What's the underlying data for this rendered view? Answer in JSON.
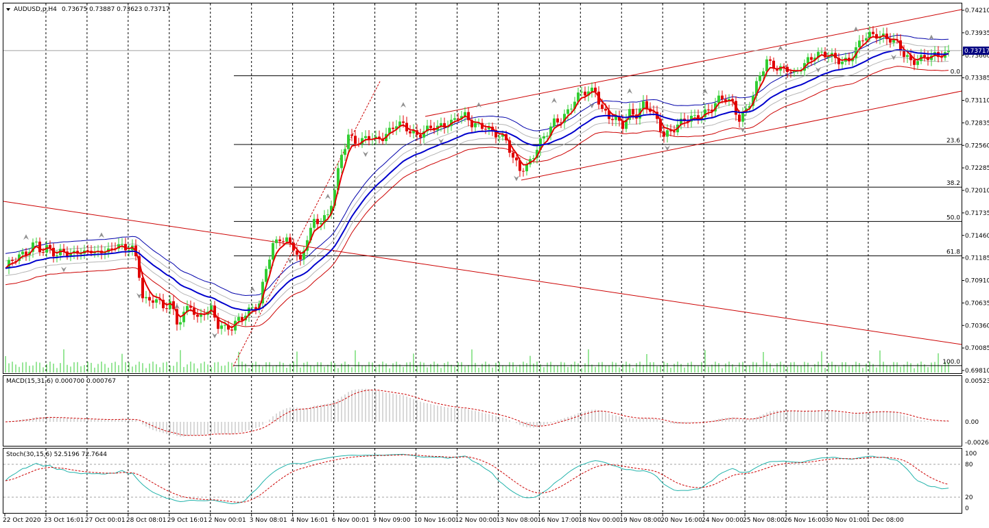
{
  "header": {
    "symbol": "AUDUSD,p,H4",
    "ohlc": "0.73675 0.73887 0.73623 0.73717"
  },
  "colors": {
    "bull_candle": "#32cd32",
    "bear_candle": "#e00000",
    "trendline": "#cc0000",
    "ma_fast": "#e00000",
    "ma_mid": "#0000cc",
    "envelope_outer": "#0000aa",
    "envelope_inner": "#b4b4b4",
    "envelope_low": "#cc0000",
    "fib_line": "#000000",
    "stoch_main": "#20b2aa",
    "stoch_signal": "#cc0000",
    "macd_signal": "#cc0000",
    "grid": "#000000",
    "price_badge": "#000080"
  },
  "chart_data": [
    {
      "type": "candlestick",
      "title": "AUDUSD,p,H4",
      "current_price": "0.73717",
      "ylim": [
        0.6981,
        0.7421
      ],
      "y_ticks": [
        "0.74210",
        "0.73935",
        "0.73660",
        "0.73385",
        "0.73110",
        "0.72835",
        "0.72560",
        "0.72285",
        "0.72010",
        "0.71735",
        "0.71460",
        "0.71185",
        "0.70910",
        "0.70635",
        "0.70360",
        "0.70085",
        "0.69810"
      ],
      "x_ticks": [
        "22 Oct 2020",
        "23 Oct 16:01",
        "27 Oct 00:01",
        "28 Oct 08:01",
        "29 Oct 16:01",
        "2 Nov 00:01",
        "3 Nov 08:01",
        "4 Nov 16:01",
        "6 Nov 00:01",
        "9 Nov 09:00",
        "10 Nov 16:00",
        "12 Nov 00:00",
        "13 Nov 08:00",
        "16 Nov 17:00",
        "18 Nov 00:00",
        "19 Nov 08:00",
        "20 Nov 16:00",
        "24 Nov 00:00",
        "25 Nov 08:00",
        "26 Nov 16:00",
        "30 Nov 01:00",
        "1 Dec 08:00"
      ],
      "fibonacci_levels": [
        {
          "label": "0.0",
          "price": 0.7341
        },
        {
          "label": "23.6",
          "price": 0.7257
        },
        {
          "label": "38.2",
          "price": 0.7205
        },
        {
          "label": "50.0",
          "price": 0.7163
        },
        {
          "label": "61.8",
          "price": 0.7121
        },
        {
          "label": "100.0",
          "price": 0.6987
        }
      ],
      "close_path": [
        [
          0,
          0.7097
        ],
        [
          10,
          0.7108
        ],
        [
          20,
          0.7115
        ],
        [
          30,
          0.712
        ],
        [
          40,
          0.7128
        ],
        [
          52,
          0.714
        ],
        [
          62,
          0.7124
        ],
        [
          72,
          0.713
        ],
        [
          82,
          0.7118
        ],
        [
          92,
          0.7132
        ],
        [
          102,
          0.7122
        ],
        [
          112,
          0.7128
        ],
        [
          122,
          0.712
        ],
        [
          132,
          0.7128
        ],
        [
          142,
          0.7124
        ],
        [
          152,
          0.7132
        ],
        [
          162,
          0.7126
        ],
        [
          172,
          0.7136
        ],
        [
          182,
          0.7124
        ],
        [
          192,
          0.7138
        ],
        [
          200,
          0.7112
        ],
        [
          208,
          0.7075
        ],
        [
          218,
          0.7062
        ],
        [
          228,
          0.7068
        ],
        [
          238,
          0.7055
        ],
        [
          248,
          0.7068
        ],
        [
          258,
          0.704
        ],
        [
          268,
          0.705
        ],
        [
          278,
          0.7058
        ],
        [
          288,
          0.7042
        ],
        [
          298,
          0.7055
        ],
        [
          308,
          0.7058
        ],
        [
          318,
          0.7036
        ],
        [
          328,
          0.703
        ],
        [
          338,
          0.7032
        ],
        [
          348,
          0.7045
        ],
        [
          358,
          0.7052
        ],
        [
          368,
          0.7058
        ],
        [
          378,
          0.706
        ],
        [
          388,
          0.7105
        ],
        [
          398,
          0.7135
        ],
        [
          408,
          0.7145
        ],
        [
          418,
          0.714
        ],
        [
          428,
          0.713
        ],
        [
          438,
          0.711
        ],
        [
          448,
          0.7145
        ],
        [
          458,
          0.7165
        ],
        [
          468,
          0.7165
        ],
        [
          478,
          0.7168
        ],
        [
          488,
          0.72
        ],
        [
          498,
          0.7245
        ],
        [
          508,
          0.727
        ],
        [
          518,
          0.7262
        ],
        [
          528,
          0.726
        ],
        [
          538,
          0.7265
        ],
        [
          548,
          0.7262
        ],
        [
          558,
          0.7268
        ],
        [
          568,
          0.7275
        ],
        [
          578,
          0.7282
        ],
        [
          588,
          0.7278
        ],
        [
          598,
          0.7272
        ],
        [
          608,
          0.727
        ],
        [
          618,
          0.7275
        ],
        [
          628,
          0.7278
        ],
        [
          638,
          0.7275
        ],
        [
          648,
          0.728
        ],
        [
          658,
          0.7285
        ],
        [
          668,
          0.7295
        ],
        [
          678,
          0.7292
        ],
        [
          688,
          0.728
        ],
        [
          698,
          0.7278
        ],
        [
          708,
          0.728
        ],
        [
          718,
          0.7275
        ],
        [
          728,
          0.7268
        ],
        [
          738,
          0.726
        ],
        [
          748,
          0.7238
        ],
        [
          758,
          0.7228
        ],
        [
          768,
          0.7232
        ],
        [
          778,
          0.7245
        ],
        [
          788,
          0.7258
        ],
        [
          798,
          0.727
        ],
        [
          808,
          0.7285
        ],
        [
          818,
          0.729
        ],
        [
          828,
          0.7298
        ],
        [
          838,
          0.731
        ],
        [
          848,
          0.7318
        ],
        [
          858,
          0.7322
        ],
        [
          868,
          0.7325
        ],
        [
          878,
          0.73
        ],
        [
          888,
          0.729
        ],
        [
          898,
          0.7285
        ],
        [
          908,
          0.728
        ],
        [
          918,
          0.7298
        ],
        [
          928,
          0.7295
        ],
        [
          938,
          0.7305
        ],
        [
          948,
          0.7298
        ],
        [
          958,
          0.7285
        ],
        [
          968,
          0.727
        ],
        [
          978,
          0.7275
        ],
        [
          988,
          0.728
        ],
        [
          998,
          0.7285
        ],
        [
          1008,
          0.7288
        ],
        [
          1018,
          0.7292
        ],
        [
          1028,
          0.7298
        ],
        [
          1038,
          0.7302
        ],
        [
          1048,
          0.731
        ],
        [
          1058,
          0.7312
        ],
        [
          1068,
          0.7308
        ],
        [
          1078,
          0.729
        ],
        [
          1088,
          0.73
        ],
        [
          1098,
          0.7315
        ],
        [
          1108,
          0.734
        ],
        [
          1118,
          0.736
        ],
        [
          1128,
          0.7355
        ],
        [
          1138,
          0.735
        ],
        [
          1148,
          0.7348
        ],
        [
          1158,
          0.734
        ],
        [
          1168,
          0.7352
        ],
        [
          1178,
          0.7362
        ],
        [
          1188,
          0.7368
        ],
        [
          1198,
          0.7366
        ],
        [
          1208,
          0.7364
        ],
        [
          1218,
          0.7362
        ],
        [
          1228,
          0.736
        ],
        [
          1238,
          0.7362
        ],
        [
          1248,
          0.7372
        ],
        [
          1258,
          0.7385
        ],
        [
          1268,
          0.739
        ],
        [
          1278,
          0.7393
        ],
        [
          1288,
          0.739
        ],
        [
          1298,
          0.7385
        ],
        [
          1308,
          0.7378
        ],
        [
          1318,
          0.7366
        ],
        [
          1328,
          0.736
        ],
        [
          1338,
          0.7362
        ],
        [
          1348,
          0.7364
        ],
        [
          1358,
          0.7362
        ],
        [
          1368,
          0.7365
        ],
        [
          1378,
          0.7368
        ],
        [
          1384,
          0.7372
        ]
      ]
    },
    {
      "type": "histogram",
      "title": "MACD(15,31,6) 0.000700 0.000767",
      "ylim": [
        -0.00262,
        0.00523
      ],
      "y_ticks": [
        "0.005233",
        "0.00",
        "-0.00262"
      ]
    },
    {
      "type": "line",
      "title": "Stoch(30,15,6) 52.5196 72.7644",
      "ylim": [
        0,
        100
      ],
      "y_ticks": [
        "100",
        "80",
        "20",
        "0"
      ]
    }
  ]
}
